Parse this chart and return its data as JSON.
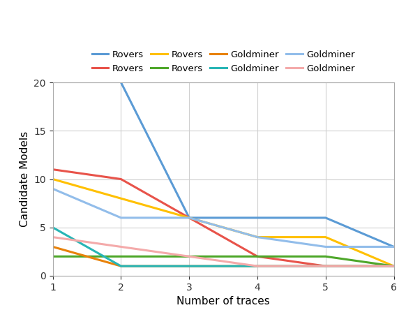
{
  "title": "",
  "xlabel": "Number of traces",
  "ylabel": "Candidate Models",
  "xlim": [
    1,
    6
  ],
  "ylim": [
    0,
    20
  ],
  "yticks": [
    0,
    5,
    10,
    15,
    20
  ],
  "xticks": [
    1,
    2,
    3,
    4,
    5,
    6
  ],
  "series": [
    {
      "label": "Rovers",
      "color": "#5B9BD5",
      "linewidth": 2.2,
      "data_x": [
        2,
        3,
        4,
        5,
        6
      ],
      "data_y": [
        20,
        6,
        6,
        6,
        3
      ]
    },
    {
      "label": "Rovers",
      "color": "#E8534A",
      "linewidth": 2.2,
      "data_x": [
        1,
        2,
        3,
        4,
        5,
        6
      ],
      "data_y": [
        11,
        10,
        6,
        2,
        1,
        1
      ]
    },
    {
      "label": "Rovers",
      "color": "#FFC000",
      "linewidth": 2.2,
      "data_x": [
        1,
        2,
        3,
        4,
        5,
        6
      ],
      "data_y": [
        10,
        8,
        6,
        4,
        4,
        1
      ]
    },
    {
      "label": "Rovers",
      "color": "#4EA72A",
      "linewidth": 2.2,
      "data_x": [
        1,
        2,
        3,
        4,
        5,
        6
      ],
      "data_y": [
        2,
        2,
        2,
        2,
        2,
        1
      ]
    },
    {
      "label": "Goldminer",
      "color": "#E8820A",
      "linewidth": 2.2,
      "data_x": [
        1,
        2,
        3,
        4,
        5,
        6
      ],
      "data_y": [
        3,
        1,
        1,
        1,
        1,
        1
      ]
    },
    {
      "label": "Goldminer",
      "color": "#28B5B5",
      "linewidth": 2.2,
      "data_x": [
        1,
        2,
        3,
        4,
        5,
        6
      ],
      "data_y": [
        5,
        1,
        1,
        1,
        1,
        1
      ]
    },
    {
      "label": "Goldminer",
      "color": "#92BDEA",
      "linewidth": 2.2,
      "data_x": [
        1,
        2,
        3,
        4,
        5,
        6
      ],
      "data_y": [
        9,
        6,
        6,
        4,
        3,
        3
      ]
    },
    {
      "label": "Goldminer",
      "color": "#F4AAAA",
      "linewidth": 2.2,
      "data_x": [
        1,
        2,
        3,
        4,
        5,
        6
      ],
      "data_y": [
        4,
        3,
        2,
        1,
        1,
        1
      ]
    }
  ],
  "legend_order": [
    0,
    1,
    2,
    3,
    4,
    5,
    6,
    7
  ],
  "background_color": "#ffffff",
  "grid_color": "#d0d0d0"
}
